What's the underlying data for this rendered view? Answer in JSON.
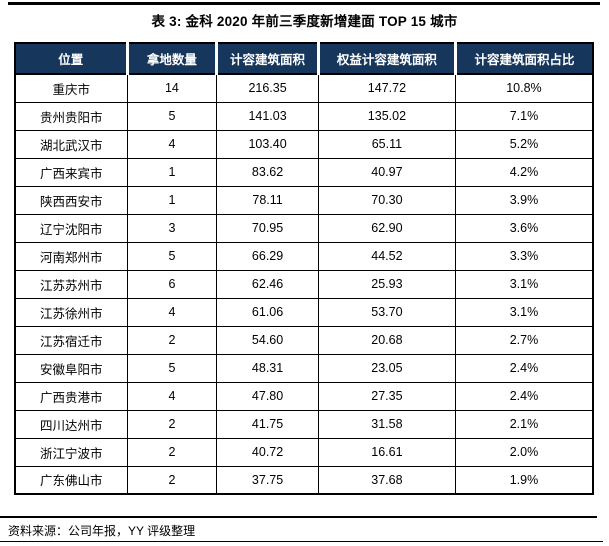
{
  "title": "表 3: 金科 2020 年前三季度新增建面 TOP 15 城市",
  "table": {
    "columns": [
      "位置",
      "拿地数量",
      "计容建筑面积",
      "权益计容建筑面积",
      "计容建筑面积占比"
    ],
    "rows": [
      [
        "重庆市",
        "14",
        "216.35",
        "147.72",
        "10.8%"
      ],
      [
        "贵州贵阳市",
        "5",
        "141.03",
        "135.02",
        "7.1%"
      ],
      [
        "湖北武汉市",
        "4",
        "103.40",
        "65.11",
        "5.2%"
      ],
      [
        "广西来宾市",
        "1",
        "83.62",
        "40.97",
        "4.2%"
      ],
      [
        "陕西西安市",
        "1",
        "78.11",
        "70.30",
        "3.9%"
      ],
      [
        "辽宁沈阳市",
        "3",
        "70.95",
        "62.90",
        "3.6%"
      ],
      [
        "河南郑州市",
        "5",
        "66.29",
        "44.52",
        "3.3%"
      ],
      [
        "江苏苏州市",
        "6",
        "62.46",
        "25.93",
        "3.1%"
      ],
      [
        "江苏徐州市",
        "4",
        "61.06",
        "53.70",
        "3.1%"
      ],
      [
        "江苏宿迁市",
        "2",
        "54.60",
        "20.68",
        "2.7%"
      ],
      [
        "安徽阜阳市",
        "5",
        "48.31",
        "23.05",
        "2.4%"
      ],
      [
        "广西贵港市",
        "4",
        "47.80",
        "27.35",
        "2.4%"
      ],
      [
        "四川达州市",
        "2",
        "41.75",
        "31.58",
        "2.1%"
      ],
      [
        "浙江宁波市",
        "2",
        "40.72",
        "16.61",
        "2.0%"
      ],
      [
        "广东佛山市",
        "2",
        "37.75",
        "37.68",
        "1.9%"
      ]
    ]
  },
  "footer": {
    "source": "资料来源：公司年报，YY 评级整理"
  },
  "colors": {
    "header_bg": "#16365C",
    "header_text": "#FFFFFF",
    "rule": "#000000",
    "body_text": "#000000"
  }
}
